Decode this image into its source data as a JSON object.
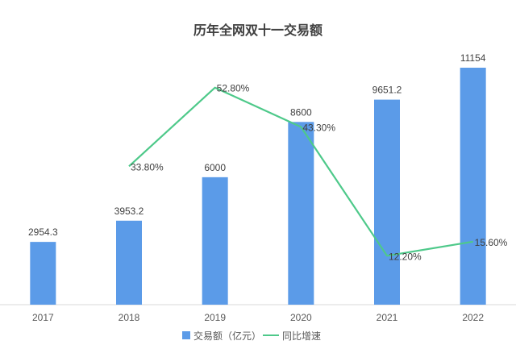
{
  "chart_data": {
    "type": "bar",
    "title": "历年全网双十一交易额",
    "categories": [
      "2017",
      "2018",
      "2019",
      "2020",
      "2021",
      "2022"
    ],
    "series": [
      {
        "name": "交易额（亿元）",
        "type": "bar",
        "values": [
          2954.3,
          3953.2,
          6000,
          8600,
          9651.2,
          11154
        ],
        "labels": [
          "2954.3",
          "3953.2",
          "6000",
          "8600",
          "9651.2",
          "11154"
        ],
        "color": "#5b9be8"
      },
      {
        "name": "同比增速",
        "type": "line",
        "values": [
          null,
          33.8,
          52.8,
          43.3,
          12.2,
          15.6
        ],
        "labels": [
          "",
          "33.80%",
          "52.80%",
          "43.30%",
          "12.20%",
          "15.60%"
        ],
        "color": "#4ec98a"
      }
    ],
    "ylim_bar": [
      0,
      12000
    ],
    "ylim_line": [
      0,
      65
    ],
    "grid": false,
    "legend_position": "bottom"
  }
}
